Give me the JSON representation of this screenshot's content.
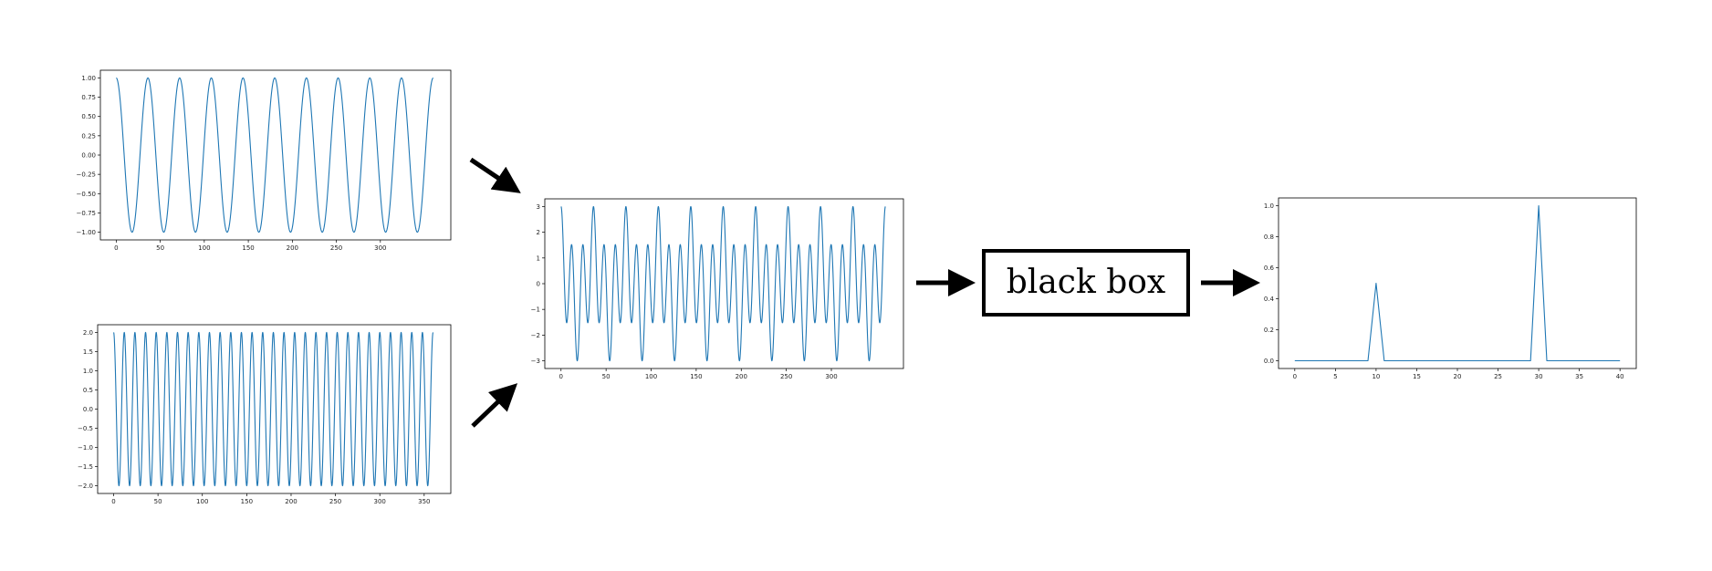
{
  "colors": {
    "line": "#1f77b4",
    "axis": "#000000",
    "arrow": "#000000",
    "box_border": "#000000"
  },
  "black_box": {
    "label": "black box"
  },
  "chart_data": [
    {
      "id": "cos-period-36",
      "type": "line",
      "function": "cos",
      "amplitude": 1.0,
      "period": 36,
      "x_range": [
        0,
        360
      ],
      "xlim": [
        -18,
        380
      ],
      "ylim": [
        -1.1,
        1.1
      ],
      "xticks": [
        0,
        50,
        100,
        150,
        200,
        250,
        300
      ],
      "yticks": [
        -1.0,
        -0.75,
        -0.5,
        -0.25,
        0.0,
        0.25,
        0.5,
        0.75,
        1.0
      ],
      "ytick_labels": [
        "−1.00",
        "−0.75",
        "−0.50",
        "−0.25",
        "0.00",
        "0.25",
        "0.50",
        "0.75",
        "1.00"
      ]
    },
    {
      "id": "cos-period-12",
      "type": "line",
      "function": "cos",
      "amplitude": 2.0,
      "period": 12,
      "x_range": [
        0,
        360
      ],
      "xlim": [
        -18,
        380
      ],
      "ylim": [
        -2.2,
        2.2
      ],
      "xticks": [
        0,
        50,
        100,
        150,
        200,
        250,
        300,
        350
      ],
      "yticks": [
        -2.0,
        -1.5,
        -1.0,
        -0.5,
        0.0,
        0.5,
        1.0,
        1.5,
        2.0
      ],
      "ytick_labels": [
        "−2.0",
        "−1.5",
        "−1.0",
        "−0.5",
        "0.0",
        "0.5",
        "1.0",
        "1.5",
        "2.0"
      ]
    },
    {
      "id": "sum-signal",
      "type": "line",
      "function": "sum",
      "components": [
        {
          "amplitude": 1.0,
          "period": 36
        },
        {
          "amplitude": 2.0,
          "period": 12
        }
      ],
      "x_range": [
        0,
        360
      ],
      "xlim": [
        -18,
        380
      ],
      "ylim": [
        -3.3,
        3.3
      ],
      "xticks": [
        0,
        50,
        100,
        150,
        200,
        250,
        300
      ],
      "yticks": [
        -3,
        -2,
        -1,
        0,
        1,
        2,
        3
      ],
      "ytick_labels": [
        "−3",
        "−2",
        "−1",
        "0",
        "1",
        "2",
        "3"
      ]
    },
    {
      "id": "spectrum",
      "type": "line",
      "function": "points",
      "x": [
        0,
        9,
        10,
        11,
        29,
        30,
        31,
        40
      ],
      "y": [
        0,
        0,
        0.5,
        0,
        0,
        1.0,
        0,
        0
      ],
      "xlim": [
        -2,
        42
      ],
      "ylim": [
        -0.05,
        1.05
      ],
      "xticks": [
        0,
        5,
        10,
        15,
        20,
        25,
        30,
        35,
        40
      ],
      "yticks": [
        0.0,
        0.2,
        0.4,
        0.6,
        0.8,
        1.0
      ],
      "ytick_labels": [
        "0.0",
        "0.2",
        "0.4",
        "0.6",
        "0.8",
        "1.0"
      ]
    }
  ]
}
